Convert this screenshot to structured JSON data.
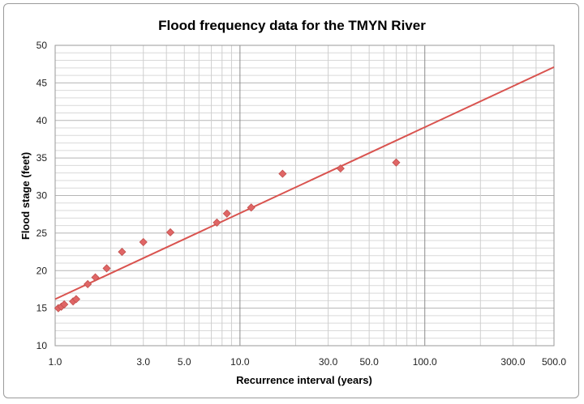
{
  "chart_data": {
    "type": "scatter",
    "title": "Flood frequency data for the TMYN River",
    "xlabel": "Recurrence interval (years)",
    "ylabel": "Flood stage (feet)",
    "x_scale": "log",
    "xlim": [
      1.0,
      500.0
    ],
    "ylim": [
      10,
      50
    ],
    "x_tick_labels": [
      "1.0",
      "3.0",
      "5.0",
      "10.0",
      "30.0",
      "50.0",
      "100.0",
      "300.0",
      "500.0"
    ],
    "y_tick_labels": [
      "10",
      "15",
      "20",
      "25",
      "30",
      "35",
      "40",
      "45",
      "50"
    ],
    "grid": true,
    "legend": "none",
    "series": [
      {
        "kind": "points",
        "marker": "diamond",
        "color": "#e06666",
        "x": [
          1.04,
          1.08,
          1.12,
          1.25,
          1.3,
          1.5,
          1.65,
          1.9,
          2.3,
          3.0,
          4.2,
          7.5,
          8.5,
          11.5,
          17.0,
          35.0,
          70.0
        ],
        "y": [
          15.0,
          15.2,
          15.5,
          15.9,
          16.2,
          18.2,
          19.1,
          20.3,
          22.5,
          23.8,
          25.1,
          26.4,
          27.6,
          28.4,
          32.9,
          33.6,
          34.4
        ]
      },
      {
        "kind": "trendline",
        "color": "#d9534f",
        "x": [
          1.0,
          500.0
        ],
        "y": [
          16.2,
          47.1
        ]
      }
    ]
  }
}
